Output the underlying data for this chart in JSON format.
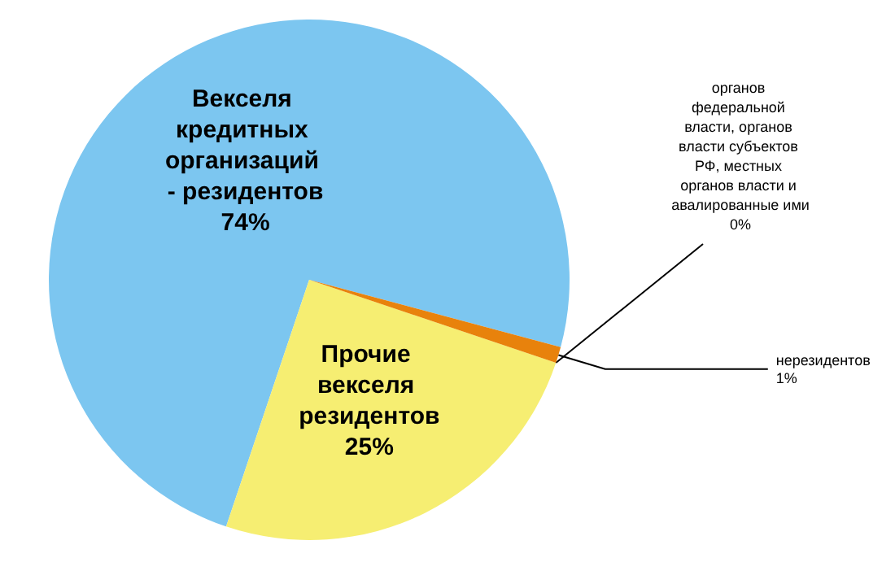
{
  "chart_data": {
    "type": "pie",
    "categories": [
      "Векселя кредитных организаций - резидентов",
      "Прочие векселя резидентов",
      "органов федеральной власти, органов власти субъектов РФ, местных органов власти и авалированные ими",
      "нерезидентов"
    ],
    "values": [
      74,
      25,
      0,
      1
    ],
    "colors": [
      "#7cc6f0",
      "#f6ee72",
      "#f0a040",
      "#e8820c"
    ],
    "value_labels": [
      "74%",
      "25%",
      "0%",
      "1%"
    ],
    "legend": false
  }
}
